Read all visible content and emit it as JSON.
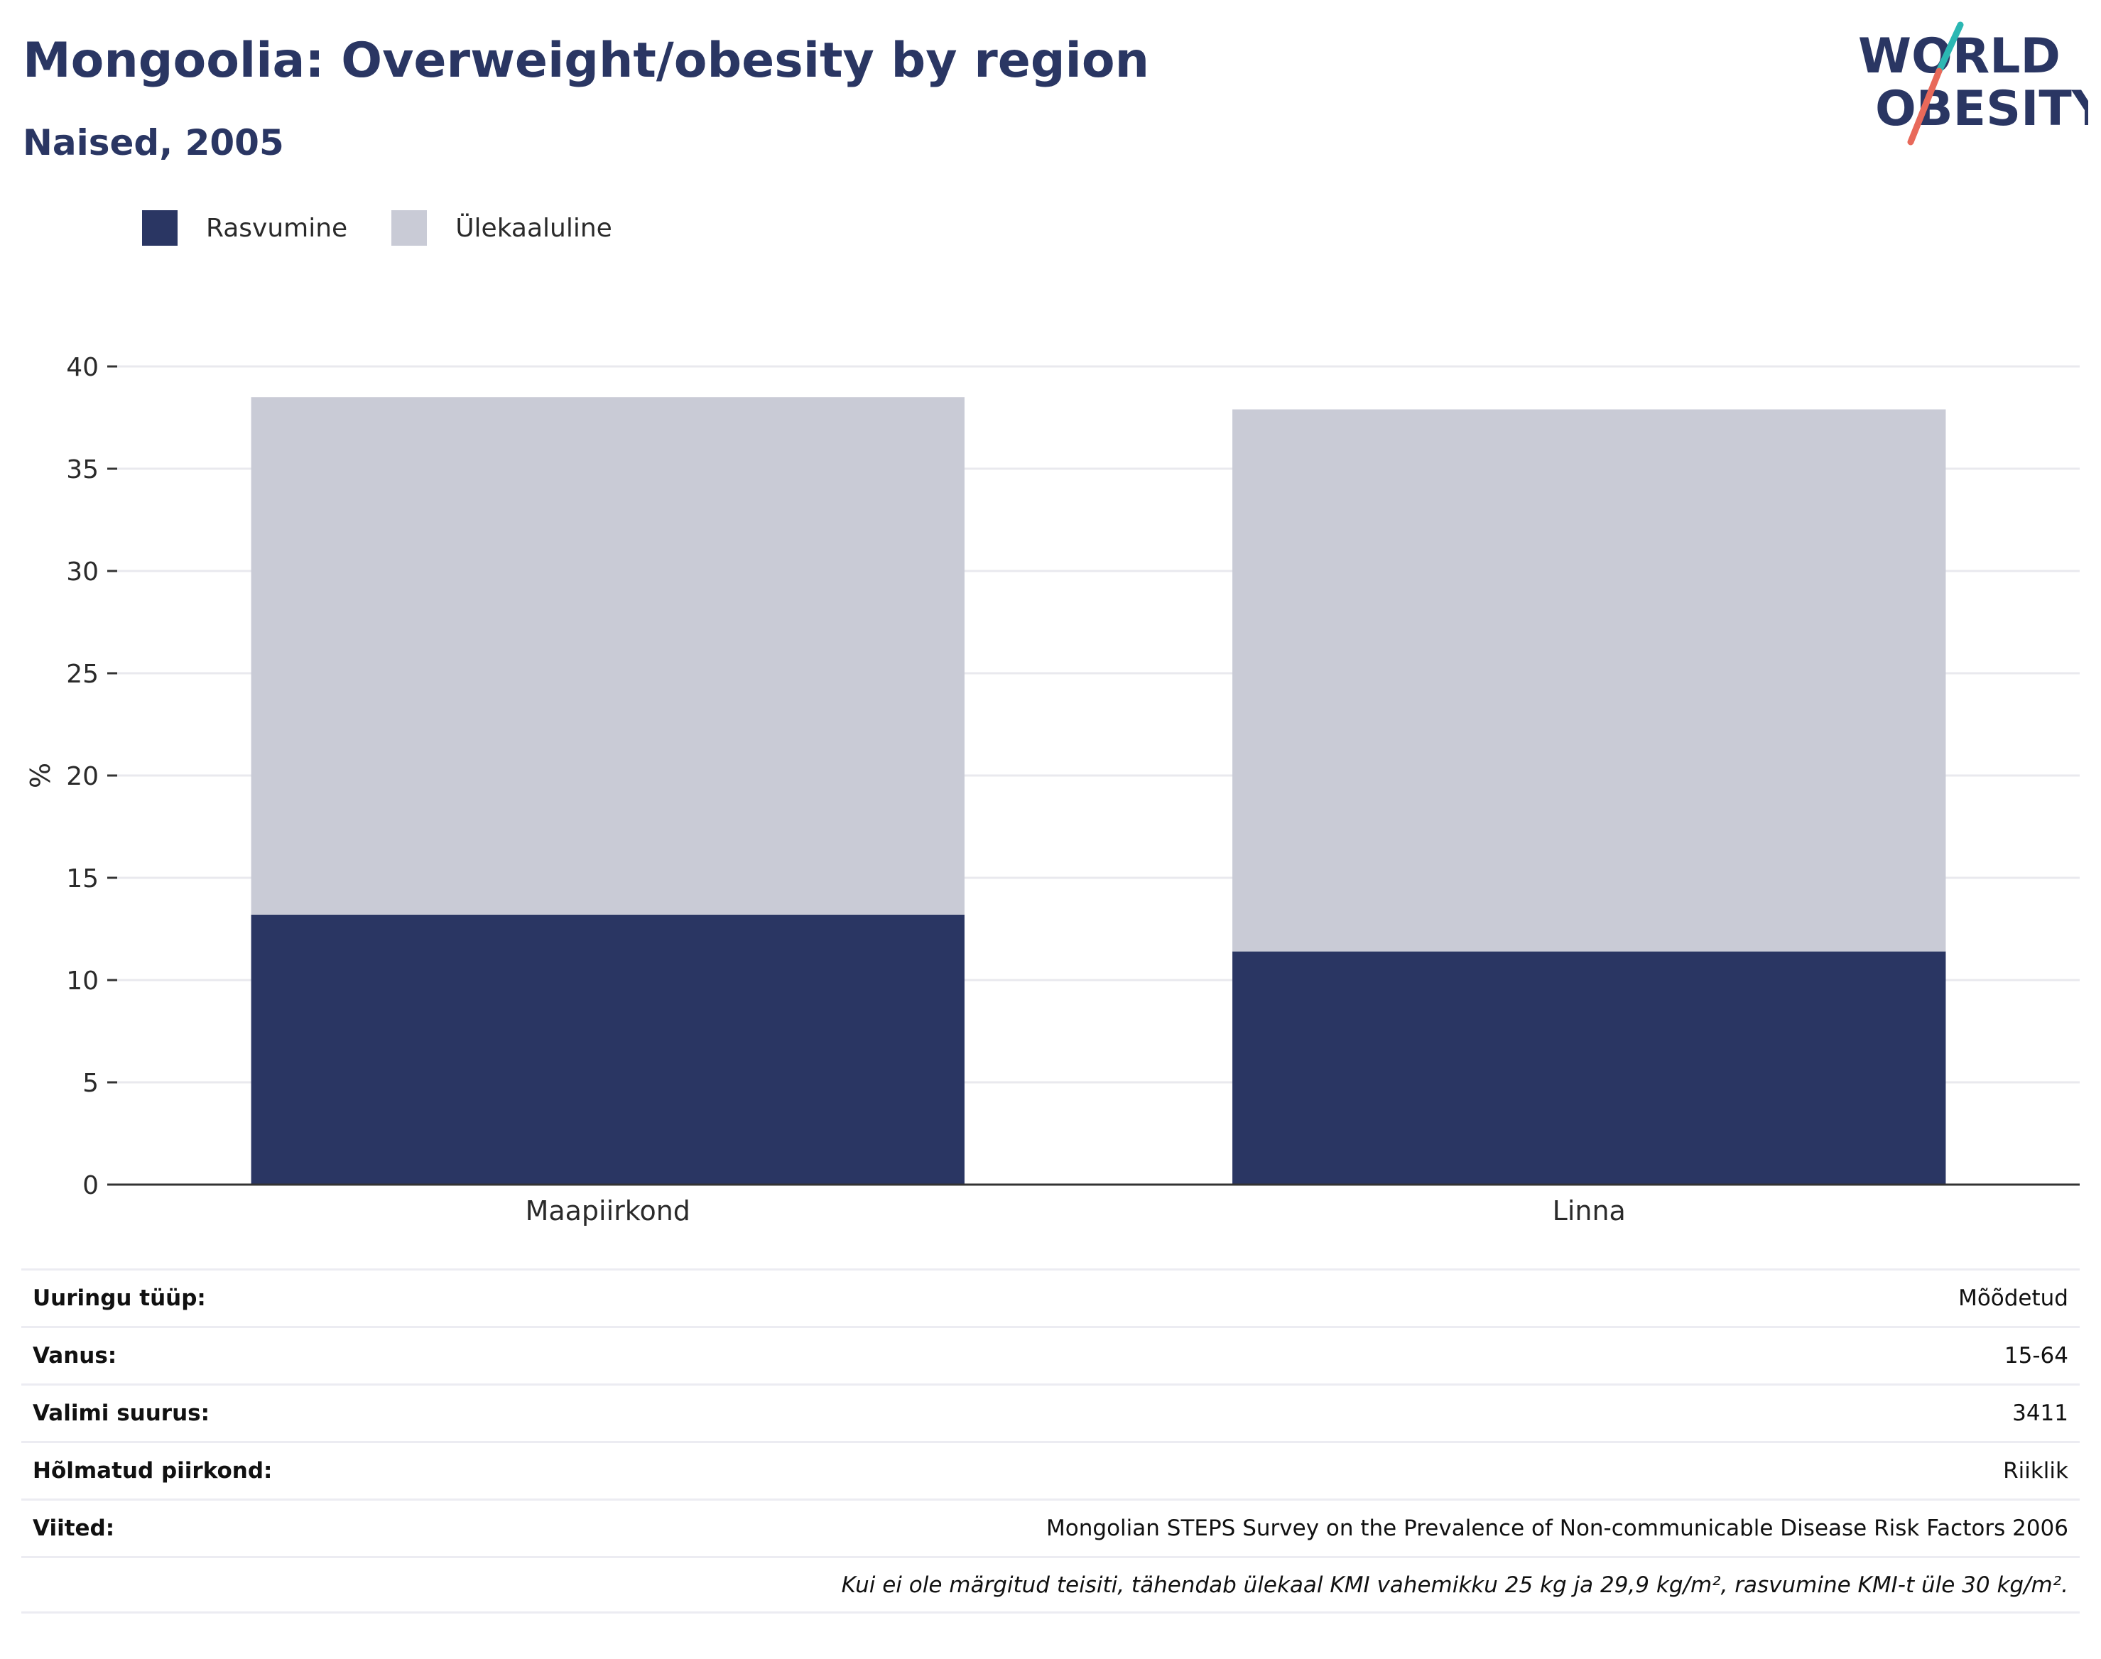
{
  "header": {
    "title": "Mongoolia: Overweight/obesity by region",
    "subtitle": "Naised, 2005"
  },
  "logo": {
    "line1": "WORLD",
    "line2": "OBESITY",
    "colors": {
      "text": "#2a3663",
      "slash_top": "#2bb7b3",
      "slash_bottom": "#e8695a"
    }
  },
  "colors": {
    "obesity": "#2a3663",
    "overweight": "#c9cbd6",
    "grid": "#e9e9ee",
    "axis": "#333333",
    "text": "#2a2a2a"
  },
  "legend": [
    {
      "label": "Rasvumine",
      "color": "#2a3663"
    },
    {
      "label": "Ülekaaluline",
      "color": "#c9cbd6"
    }
  ],
  "chart_data": {
    "type": "bar",
    "stacked": true,
    "categories": [
      "Maapiirkond",
      "Linna"
    ],
    "series": [
      {
        "name": "Rasvumine",
        "values": [
          13.2,
          11.4
        ]
      },
      {
        "name": "Ülekaaluline",
        "values": [
          25.3,
          26.5
        ]
      }
    ],
    "ylabel": "%",
    "ylim": [
      0,
      40
    ],
    "yticks": [
      0,
      5,
      10,
      15,
      20,
      25,
      30,
      35,
      40
    ],
    "grid": true,
    "legend_position": "top-left"
  },
  "meta": {
    "rows": [
      {
        "label": "Uuringu tüüp:",
        "value": "Mõõdetud"
      },
      {
        "label": "Vanus:",
        "value": "15-64"
      },
      {
        "label": "Valimi suurus:",
        "value": "3411"
      },
      {
        "label": "Hõlmatud piirkond:",
        "value": "Riiklik"
      },
      {
        "label": "Viited:",
        "value": "Mongolian STEPS Survey on the Prevalence of Non-communicable Disease Risk Factors 2006"
      }
    ],
    "note": "Kui ei ole märgitud teisiti, tähendab ülekaal KMI vahemikku 25 kg ja 29,9 kg/m², rasvumine KMI-t üle 30 kg/m²."
  }
}
